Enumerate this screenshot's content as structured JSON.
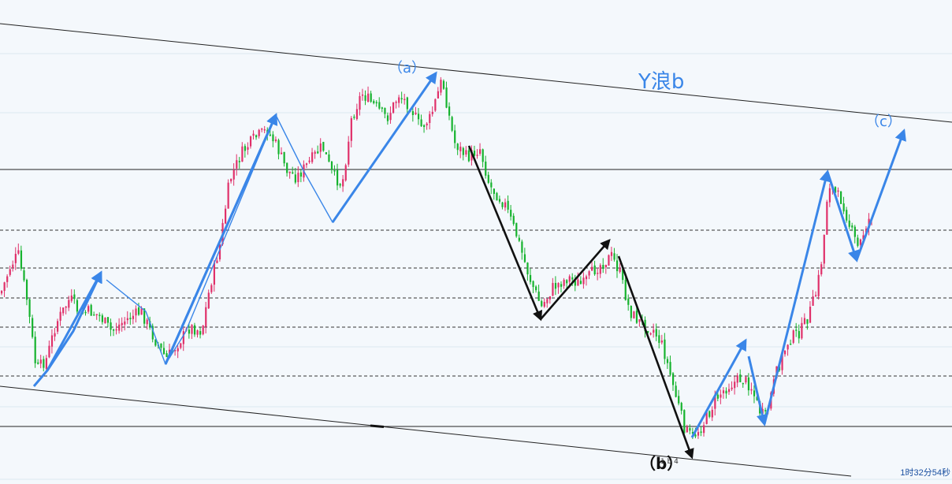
{
  "colors": {
    "background": "#f4f8fc",
    "bull": "#e0306a",
    "bear": "#16b32e",
    "blue_arrow": "#3a86e8",
    "black_arrow": "#111111",
    "label_blue": "#3a86e8",
    "channel": "#222222",
    "grid": "#dde7f0"
  },
  "chart_data": {
    "type": "candlestick",
    "title": "",
    "xlabel": "",
    "ylabel": "",
    "grid": true,
    "annotations": {
      "wave_title": "Y浪b",
      "wave_a": "（a）",
      "wave_b": "（b）",
      "wave_c": "（c）",
      "sub_label": "1 b 4"
    },
    "timer": "1时32分54秒",
    "anchor_points": [
      [
        0,
        372
      ],
      [
        12,
        338
      ],
      [
        22,
        322
      ],
      [
        34,
        385
      ],
      [
        45,
        470
      ],
      [
        58,
        455
      ],
      [
        70,
        410
      ],
      [
        88,
        378
      ],
      [
        100,
        398
      ],
      [
        112,
        395
      ],
      [
        125,
        400
      ],
      [
        140,
        420
      ],
      [
        160,
        405
      ],
      [
        178,
        395
      ],
      [
        195,
        430
      ],
      [
        210,
        455
      ],
      [
        225,
        435
      ],
      [
        240,
        415
      ],
      [
        255,
        420
      ],
      [
        265,
        365
      ],
      [
        278,
        310
      ],
      [
        290,
        230
      ],
      [
        305,
        195
      ],
      [
        322,
        175
      ],
      [
        338,
        165
      ],
      [
        350,
        185
      ],
      [
        362,
        215
      ],
      [
        375,
        225
      ],
      [
        392,
        205
      ],
      [
        408,
        185
      ],
      [
        420,
        220
      ],
      [
        433,
        235
      ],
      [
        445,
        150
      ],
      [
        458,
        118
      ],
      [
        470,
        130
      ],
      [
        490,
        150
      ],
      [
        505,
        120
      ],
      [
        520,
        135
      ],
      [
        532,
        162
      ],
      [
        545,
        150
      ],
      [
        560,
        100
      ],
      [
        575,
        180
      ],
      [
        592,
        200
      ],
      [
        608,
        188
      ],
      [
        620,
        235
      ],
      [
        640,
        260
      ],
      [
        655,
        300
      ],
      [
        670,
        350
      ],
      [
        686,
        390
      ],
      [
        700,
        365
      ],
      [
        720,
        352
      ],
      [
        738,
        362
      ],
      [
        755,
        340
      ],
      [
        775,
        325
      ],
      [
        785,
        345
      ],
      [
        798,
        395
      ],
      [
        812,
        410
      ],
      [
        828,
        418
      ],
      [
        840,
        440
      ],
      [
        856,
        500
      ],
      [
        868,
        545
      ],
      [
        878,
        555
      ],
      [
        893,
        535
      ],
      [
        908,
        505
      ],
      [
        922,
        490
      ],
      [
        940,
        480
      ],
      [
        952,
        490
      ],
      [
        962,
        520
      ],
      [
        970,
        530
      ],
      [
        985,
        470
      ],
      [
        1000,
        430
      ],
      [
        1015,
        420
      ],
      [
        1025,
        400
      ],
      [
        1035,
        370
      ],
      [
        1043,
        320
      ],
      [
        1050,
        230
      ],
      [
        1058,
        245
      ],
      [
        1068,
        255
      ],
      [
        1078,
        290
      ],
      [
        1088,
        315
      ],
      [
        1098,
        285
      ],
      [
        1106,
        270
      ]
    ],
    "blue_arrows": [
      [
        [
          43,
          490
        ],
        [
          60,
          470
        ],
        [
          93,
          420
        ],
        [
          128,
          346
        ]
      ],
      [
        [
          135,
          355
        ],
        [
          185,
          395
        ],
        [
          210,
          462
        ],
        [
          235,
          422
        ],
        [
          350,
          146
        ]
      ],
      [
        [
          350,
          146
        ],
        [
          386,
          218
        ],
        [
          422,
          282
        ],
        [
          553,
          93
        ]
      ],
      [
        [
          210,
          462
        ],
        [
          350,
          146
        ]
      ],
      [
        [
          878,
          555
        ],
        [
          946,
          432
        ]
      ],
      [
        [
          950,
          452
        ],
        [
          970,
          538
        ]
      ],
      [
        [
          970,
          538
        ],
        [
          1050,
          218
        ]
      ],
      [
        [
          1050,
          218
        ],
        [
          1087,
          330
        ]
      ],
      [
        [
          1087,
          330
        ],
        [
          1147,
          166
        ]
      ]
    ],
    "black_arrows": [
      [
        [
          595,
          185
        ],
        [
          686,
          405
        ]
      ],
      [
        [
          686,
          405
        ],
        [
          773,
          305
        ]
      ],
      [
        [
          785,
          325
        ],
        [
          878,
          580
        ]
      ]
    ]
  }
}
